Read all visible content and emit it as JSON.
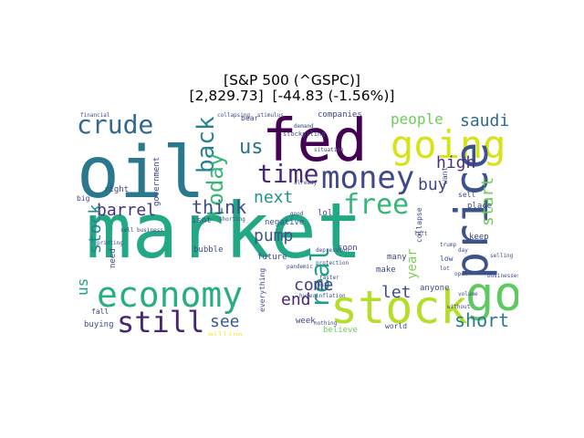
{
  "title": {
    "line1": "[S&P 500 (^GSPC)]",
    "line2": "[2,829.73]  [-44.83 (-1.56%)]"
  },
  "wordcloud": {
    "colormap": "viridis",
    "background": "#ffffff",
    "words": [
      {
        "text": "market",
        "color": "#22a884"
      },
      {
        "text": "oil",
        "color": "#2a788e"
      },
      {
        "text": "fed",
        "color": "#440154"
      },
      {
        "text": "going",
        "color": "#d8e219"
      },
      {
        "text": "price",
        "color": "#3b528b"
      },
      {
        "text": "stock",
        "color": "#b5de2b"
      },
      {
        "text": "economy",
        "color": "#29af7f"
      },
      {
        "text": "go",
        "color": "#5ec962"
      },
      {
        "text": "money",
        "color": "#3e4989"
      },
      {
        "text": "crude",
        "color": "#31688e"
      },
      {
        "text": "time",
        "color": "#482878"
      },
      {
        "text": "free",
        "color": "#35b779"
      },
      {
        "text": "still",
        "color": "#482475"
      },
      {
        "text": "back",
        "color": "#26828e"
      },
      {
        "text": "real",
        "color": "#1f9e89"
      },
      {
        "text": "today",
        "color": "#35b779"
      },
      {
        "text": "us",
        "color": "#2c728e"
      },
      {
        "text": "think",
        "color": "#3e4a89"
      },
      {
        "text": "barrel",
        "color": "#472d7b"
      },
      {
        "text": "short",
        "color": "#2a788e"
      },
      {
        "text": "stock",
        "color": "#25848e"
      },
      {
        "text": "people",
        "color": "#6ece58"
      },
      {
        "text": "saudi",
        "color": "#31688e"
      },
      {
        "text": "high",
        "color": "#46327e"
      },
      {
        "text": "buy",
        "color": "#404688"
      },
      {
        "text": "start",
        "color": "#6ece58"
      },
      {
        "text": "next",
        "color": "#21918c"
      },
      {
        "text": "pump",
        "color": "#3b528b"
      },
      {
        "text": "see",
        "color": "#375b8d"
      },
      {
        "text": "come",
        "color": "#433e85"
      },
      {
        "text": "end",
        "color": "#482475"
      },
      {
        "text": "let",
        "color": "#3e4a89"
      },
      {
        "text": "year",
        "color": "#7ad151"
      },
      {
        "text": "us",
        "color": "#1f9e89"
      },
      {
        "text": "bubble",
        "color": "#3e4a89"
      },
      {
        "text": "negative",
        "color": "#39568c"
      },
      {
        "text": "future",
        "color": "#3e4a89"
      },
      {
        "text": "week",
        "color": "#3e4a89"
      },
      {
        "text": "believe",
        "color": "#6ece58"
      },
      {
        "text": "buying",
        "color": "#3e4a89"
      },
      {
        "text": "million",
        "color": "#fde725"
      },
      {
        "text": "anyone",
        "color": "#3e4a89"
      },
      {
        "text": "many",
        "color": "#3e4a89"
      },
      {
        "text": "soon",
        "color": "#3e4a89"
      },
      {
        "text": "make",
        "color": "#3e4a89"
      },
      {
        "text": "need",
        "color": "#3e4a89"
      },
      {
        "text": "right",
        "color": "#3e4a89"
      },
      {
        "text": "isnt",
        "color": "#3e4a89"
      },
      {
        "text": "lol",
        "color": "#3e4a89"
      },
      {
        "text": "place",
        "color": "#3e4a89"
      },
      {
        "text": "keep",
        "color": "#3e4a89"
      },
      {
        "text": "sell",
        "color": "#3e4a89"
      },
      {
        "text": "want",
        "color": "#3e4a89"
      },
      {
        "text": "bear",
        "color": "#3e4a89"
      },
      {
        "text": "companies",
        "color": "#3e4a89"
      },
      {
        "text": "government",
        "color": "#3e4a89"
      },
      {
        "text": "collapse",
        "color": "#3e4a89"
      },
      {
        "text": "world",
        "color": "#3e4a89"
      },
      {
        "text": "fall",
        "color": "#3e4a89"
      },
      {
        "text": "big",
        "color": "#3e4a89"
      },
      {
        "text": "everything",
        "color": "#3e4a89"
      },
      {
        "text": "low",
        "color": "#3e4a89"
      },
      {
        "text": "day",
        "color": "#3e4a89"
      },
      {
        "text": "good",
        "color": "#3e4a89"
      },
      {
        "text": "lot",
        "color": "#3e4a89"
      },
      {
        "text": "selling",
        "color": "#3e4a89"
      },
      {
        "text": "trump",
        "color": "#3e4a89"
      },
      {
        "text": "stockpiling",
        "color": "#3e4a89"
      },
      {
        "text": "depression",
        "color": "#3e4a89"
      },
      {
        "text": "hyperinflation",
        "color": "#3e4a89"
      },
      {
        "text": "pandemic",
        "color": "#3e4a89"
      },
      {
        "text": "businesses",
        "color": "#3e4a89"
      },
      {
        "text": "financial",
        "color": "#3e4a89"
      },
      {
        "text": "printing",
        "color": "#3e4a89"
      },
      {
        "text": "shorting",
        "color": "#3e4a89"
      },
      {
        "text": "collapsing",
        "color": "#3e4a89"
      },
      {
        "text": "demand",
        "color": "#3e4a89"
      },
      {
        "text": "situation",
        "color": "#3e4a89"
      },
      {
        "text": "protection",
        "color": "#3e4a89"
      },
      {
        "text": "nothing",
        "color": "#3e4a89"
      },
      {
        "text": "faster",
        "color": "#3e4a89"
      },
      {
        "text": "volume",
        "color": "#3e4a89"
      },
      {
        "text": "without",
        "color": "#3e4a89"
      },
      {
        "text": "cont",
        "color": "#3e4a89"
      },
      {
        "text": "left",
        "color": "#3e4a89"
      },
      {
        "text": "open",
        "color": "#3e4a89"
      },
      {
        "text": "stimulus",
        "color": "#3e4a89"
      },
      {
        "text": "sell business",
        "color": "#3e4a89"
      },
      {
        "text": "already",
        "color": "#3e4a89"
      }
    ]
  }
}
